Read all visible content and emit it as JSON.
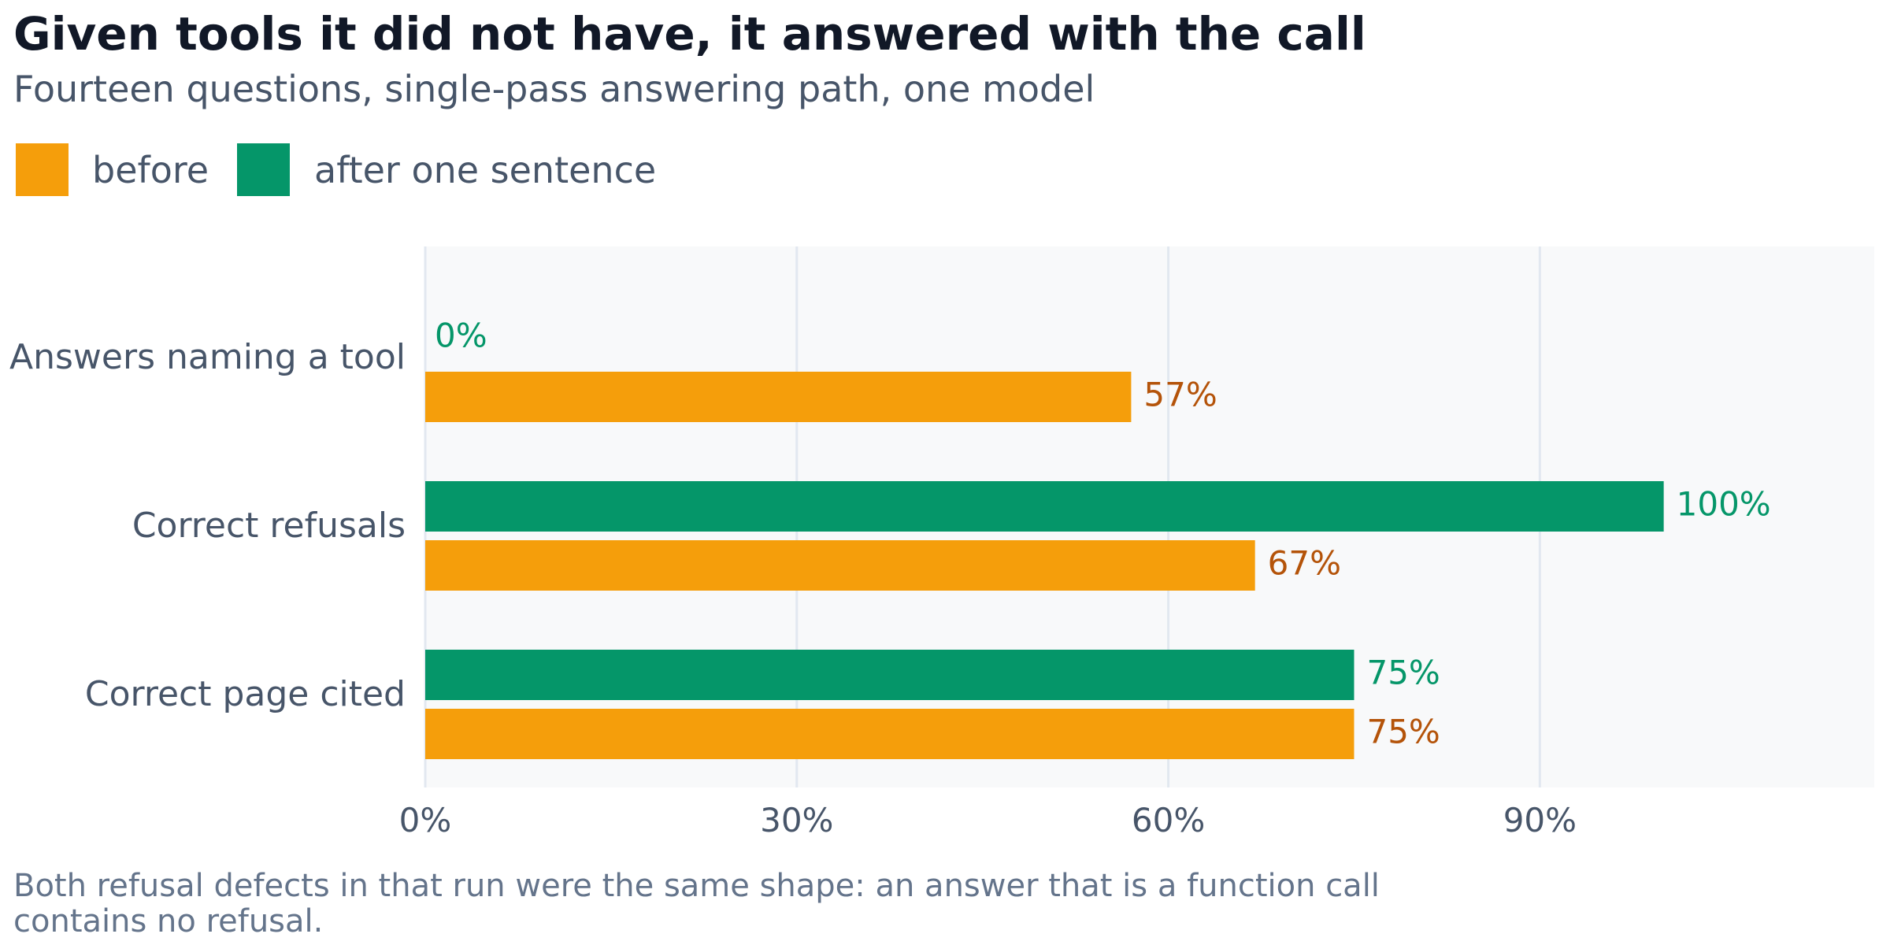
{
  "chart_data": {
    "type": "bar",
    "orientation": "horizontal",
    "title": "Given tools it did not have, it answered with the call",
    "subtitle": "Fourteen questions, single-pass answering path, one model",
    "categories": [
      "Answers naming a tool",
      "Correct refusals",
      "Correct page cited"
    ],
    "series": [
      {
        "name": "after one sentence",
        "values": [
          0,
          100,
          75
        ],
        "labels": [
          "0%",
          "100%",
          "75%"
        ]
      },
      {
        "name": "before",
        "values": [
          57,
          67,
          75
        ],
        "labels": [
          "57%",
          "67%",
          "75%"
        ]
      }
    ],
    "legend": [
      {
        "name": "before",
        "color": "#f59e0b"
      },
      {
        "name": "after one sentence",
        "color": "#059669"
      }
    ],
    "xlim": [
      0,
      117
    ],
    "xticks": [
      0,
      30,
      60,
      90
    ],
    "xtick_labels": [
      "0%",
      "30%",
      "60%",
      "90%"
    ],
    "grid": true,
    "legend_position": "top-left",
    "footnote": "Both refusal defects in that run were the same shape: an answer that is a function call contains no refusal.",
    "colors": {
      "before": "#f59e0b",
      "after": "#059669",
      "before_label": "#b45309",
      "after_label": "#059669",
      "title": "#111827",
      "text": "#475569",
      "footnote": "#64748b",
      "plot_bg": "#f8f9fa",
      "grid": "#e2e8f0"
    }
  }
}
